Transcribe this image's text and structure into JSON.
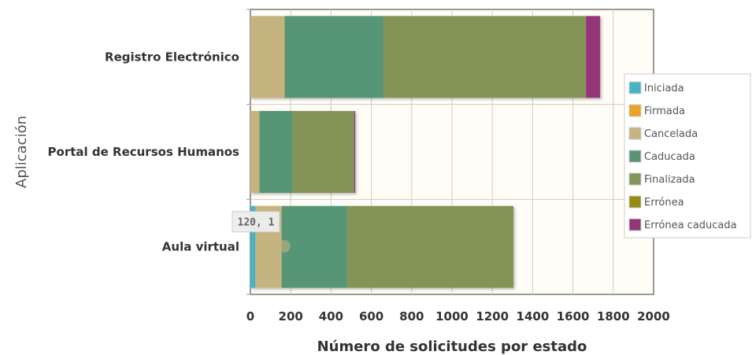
{
  "chart_data": {
    "type": "bar",
    "orientation": "horizontal",
    "stacked": true,
    "categories": [
      "Registro Electrónico",
      "Portal de Recursos Humanos",
      "Aula virtual"
    ],
    "series": [
      {
        "name": "Iniciada",
        "color": "#4bb2c5",
        "values": [
          0,
          0,
          25
        ]
      },
      {
        "name": "Firmada",
        "color": "#eaa228",
        "values": [
          0,
          0,
          0
        ]
      },
      {
        "name": "Cancelada",
        "color": "#c5b47f",
        "values": [
          170,
          45,
          130
        ]
      },
      {
        "name": "Caducada",
        "color": "#579575",
        "values": [
          490,
          165,
          325
        ]
      },
      {
        "name": "Finalizada",
        "color": "#839557",
        "values": [
          1005,
          305,
          825
        ]
      },
      {
        "name": "Errónea",
        "color": "#958c12",
        "values": [
          0,
          0,
          0
        ]
      },
      {
        "name": "Errónea caducada",
        "color": "#953579",
        "values": [
          70,
          5,
          0
        ]
      }
    ],
    "xlim": [
      0,
      2000
    ],
    "xticks": [
      0,
      200,
      400,
      600,
      800,
      1000,
      1200,
      1400,
      1600,
      1800,
      2000
    ],
    "xlabel": "Número de solicitudes por estado",
    "ylabel": "Aplicación",
    "grid": true,
    "legend_position": "right",
    "tooltip": {
      "text": "120, 1",
      "x": 120,
      "category_index": 2
    }
  }
}
